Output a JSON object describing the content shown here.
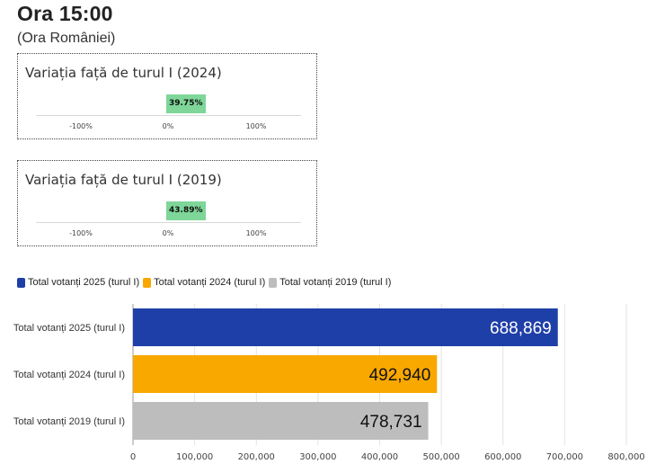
{
  "header": {
    "title": "Ora 15:00",
    "subtitle": "(Ora României)"
  },
  "variation_cards": [
    {
      "title": "Variația față de turul I (2024)",
      "value": 39.75,
      "value_label": "39.75%",
      "ticks": [
        "-100%",
        "0%",
        "100%"
      ],
      "badge_color": "#7ed698"
    },
    {
      "title": "Variația față de turul I (2019)",
      "value": 43.89,
      "value_label": "43.89%",
      "ticks": [
        "-100%",
        "0%",
        "100%"
      ],
      "badge_color": "#7ed698"
    }
  ],
  "chart_data": {
    "type": "bar",
    "orientation": "horizontal",
    "categories": [
      "Total votanți 2025 (turul I)",
      "Total votanți 2024 (turul I)",
      "Total votanți 2019 (turul I)"
    ],
    "values": [
      688869,
      492940,
      478731
    ],
    "value_labels": [
      "688,869",
      "492,940",
      "478,731"
    ],
    "colors": [
      "#1f3fa8",
      "#f9a800",
      "#bdbdbd"
    ],
    "label_colors": [
      "#ffffff",
      "#111111",
      "#111111"
    ],
    "xlim": [
      0,
      800000
    ],
    "xticks": [
      "0",
      "100,000",
      "200,000",
      "300,000",
      "400,000",
      "500,000",
      "600,000",
      "700,000",
      "800,000"
    ],
    "grid": true,
    "legend": {
      "placement": "top-left",
      "entries": [
        {
          "label": "Total votanți 2025 (turul I)",
          "color": "#1f3fa8"
        },
        {
          "label": "Total votanți 2024 (turul I)",
          "color": "#f9a800"
        },
        {
          "label": "Total votanți 2019 (turul I)",
          "color": "#bdbdbd"
        }
      ]
    }
  }
}
